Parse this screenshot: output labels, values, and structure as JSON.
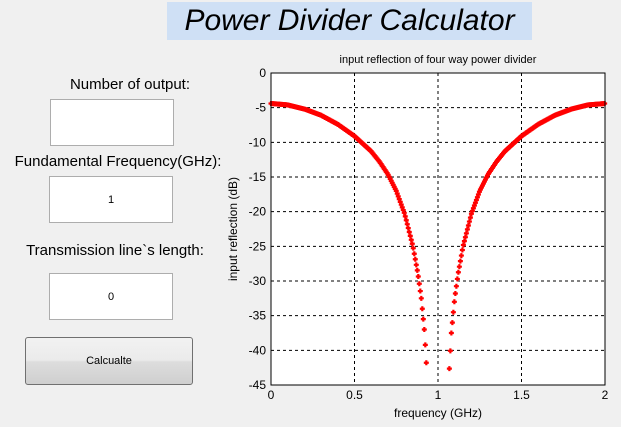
{
  "app": {
    "title": "Power Divider Calculator"
  },
  "form": {
    "num_outputs_label": "Number of output:",
    "num_outputs_value": "",
    "freq_label": "Fundamental Frequency(GHz):",
    "freq_value": "1",
    "length_label": "Transmission line`s length:",
    "length_value": "0",
    "calc_button": "Calcualte"
  },
  "colors": {
    "marker": "#ff0000",
    "title_bg": "#cfe0f5",
    "window_bg": "#f0f0f0"
  },
  "chart_data": {
    "type": "scatter",
    "title": "input reflection of four way power divider",
    "xlabel": "frequency (GHz)",
    "ylabel": "input reflection (dB)",
    "xlim": [
      0,
      2
    ],
    "ylim": [
      -45,
      0
    ],
    "xticks": [
      "0",
      "0.5",
      "1",
      "1.5",
      "2"
    ],
    "yticks": [
      "0",
      "-5",
      "-10",
      "-15",
      "-20",
      "-25",
      "-30",
      "-35",
      "-40",
      "-45"
    ],
    "grid": true,
    "marker_color": "#ff0000",
    "symmetric_about": 1.0,
    "sample_step": 0.006,
    "x": [
      0,
      0.1,
      0.2,
      0.3,
      0.4,
      0.5,
      0.6,
      0.65,
      0.7,
      0.75,
      0.8,
      0.85,
      0.88,
      0.9,
      0.92,
      0.934
    ],
    "y": [
      -4.4,
      -4.6,
      -5.2,
      -6.1,
      -7.4,
      -9.1,
      -11.3,
      -12.8,
      -14.6,
      -17.0,
      -20.3,
      -25.0,
      -29.0,
      -32.5,
      -37.5,
      -43.5
    ]
  }
}
